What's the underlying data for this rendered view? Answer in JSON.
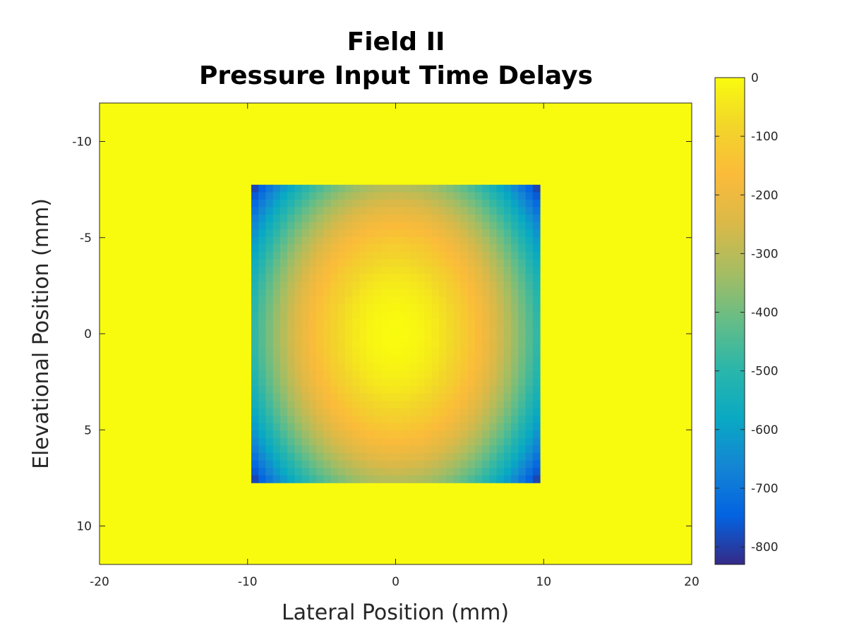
{
  "chart_data": {
    "type": "heatmap",
    "title_line1": "Field II",
    "title_line2": "Pressure Input Time Delays",
    "xlabel": "Lateral Position (mm)",
    "ylabel": "Elevational Position (mm)",
    "xlim": [
      -20,
      20
    ],
    "ylim": [
      -12,
      12
    ],
    "y_reversed": true,
    "x_ticks": [
      -20,
      -10,
      0,
      10,
      20
    ],
    "y_ticks": [
      -10,
      -5,
      0,
      5,
      10
    ],
    "background_value": 0,
    "aperture": {
      "x_range": [
        -9.75,
        9.75
      ],
      "y_range": [
        -7.75,
        7.75
      ]
    },
    "delay_model": "quadratic falloff from center, 0 at center to about -830 at corners",
    "colorbar": {
      "limits": [
        -830,
        0
      ],
      "ticks": [
        0,
        -100,
        -200,
        -300,
        -400,
        -500,
        -600,
        -700,
        -800
      ],
      "colormap": "parula"
    }
  }
}
